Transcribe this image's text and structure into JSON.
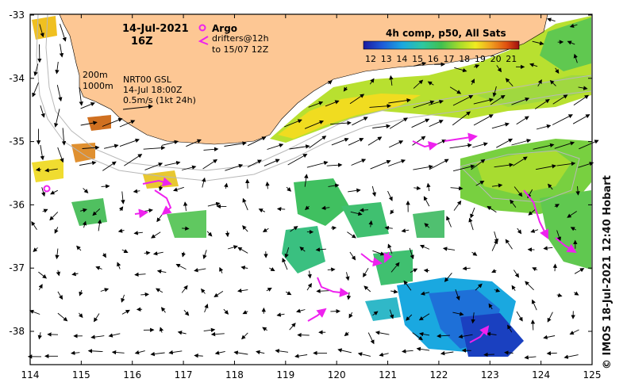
{
  "map": {
    "date": "14-Jul-2021",
    "hour": "16Z",
    "argo_label": "Argo",
    "drifters_line1": "drifters@12h",
    "drifters_line2": "to 15/07 12Z",
    "depth_label_200": "200m",
    "depth_label_1000": "1000m",
    "product": "NRT00 GSL",
    "product_time": "14-Jul 18:00Z",
    "scale_label": "0.5m/s (1kt 24h)",
    "colorbar_title": "4h comp, p50, All Sats",
    "colorbar_ticks": [
      "12",
      "13",
      "14",
      "15",
      "16",
      "17",
      "18",
      "19",
      "20",
      "21"
    ],
    "credit": "© IMOS 18-Jul-2021 12:40 Hobart",
    "lon_ticks": [
      "114",
      "115",
      "116",
      "117",
      "118",
      "119",
      "120",
      "121",
      "122",
      "123",
      "124",
      "125"
    ],
    "lat_ticks": [
      "-33",
      "-34",
      "-35",
      "-36",
      "-37",
      "-38"
    ],
    "colors": {
      "land": "#fdc794",
      "ocean": "#ffffff",
      "drifter": "#ee22ee",
      "isobath": "#b8b8b8"
    }
  }
}
